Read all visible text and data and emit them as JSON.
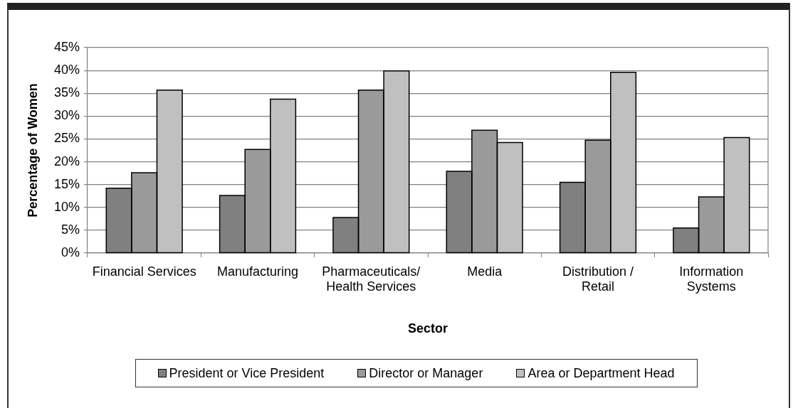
{
  "chart_data": {
    "type": "bar",
    "xlabel": "Sector",
    "ylabel": "Percentage of Women",
    "categories": [
      "Financial Services",
      "Manufacturing",
      "Pharmaceuticals/ Health Services",
      "Media",
      "Distribution / Retail",
      "Information Systems"
    ],
    "series": [
      {
        "name": "President or Vice President",
        "color": "#808080",
        "values": [
          14.2,
          12.6,
          7.8,
          17.9,
          15.5,
          5.5
        ]
      },
      {
        "name": "Director or Manager",
        "color": "#9a9a9a",
        "values": [
          17.6,
          22.7,
          35.7,
          26.9,
          24.7,
          12.3
        ]
      },
      {
        "name": "Area or Department Head",
        "color": "#c0c0c0",
        "values": [
          35.7,
          33.7,
          39.9,
          24.2,
          39.6,
          25.3
        ]
      }
    ],
    "ylim": [
      0,
      45
    ],
    "yticks": [
      {
        "value": 0,
        "label": "0%"
      },
      {
        "value": 5,
        "label": "5%"
      },
      {
        "value": 10,
        "label": "10%"
      },
      {
        "value": 15,
        "label": "15%"
      },
      {
        "value": 20,
        "label": "20%"
      },
      {
        "value": 25,
        "label": "25%"
      },
      {
        "value": 30,
        "label": "30%"
      },
      {
        "value": 35,
        "label": "35%"
      },
      {
        "value": 40,
        "label": "40%"
      },
      {
        "value": 45,
        "label": "45%"
      }
    ],
    "grid": "y",
    "legend": "bottom"
  }
}
